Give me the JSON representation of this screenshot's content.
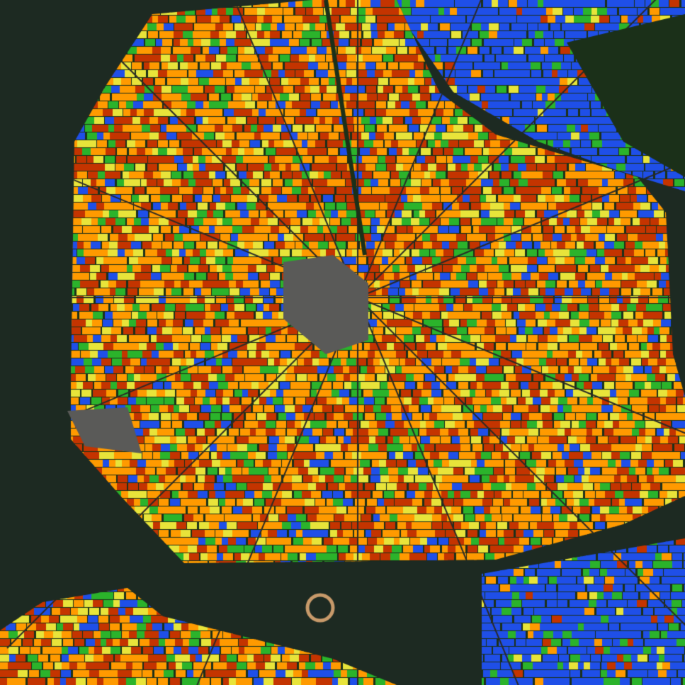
{
  "map": {
    "type": "satellite imagery with crop-type classification overlay",
    "colors": {
      "water": "#1d2a22",
      "water_channel": "#2a3a30",
      "dark_vegetation": "#1b3019",
      "urban": "#5a5a58",
      "road": "#2a2a26"
    },
    "class_colors": [
      "#ff9a00",
      "#c43400",
      "#e8e43a",
      "#2bb32b",
      "#1f4fe8"
    ],
    "class_weights": [
      0.36,
      0.28,
      0.14,
      0.12,
      0.1
    ],
    "peripheral_class_weights": [
      0.05,
      0.03,
      0.04,
      0.13,
      0.75
    ]
  }
}
